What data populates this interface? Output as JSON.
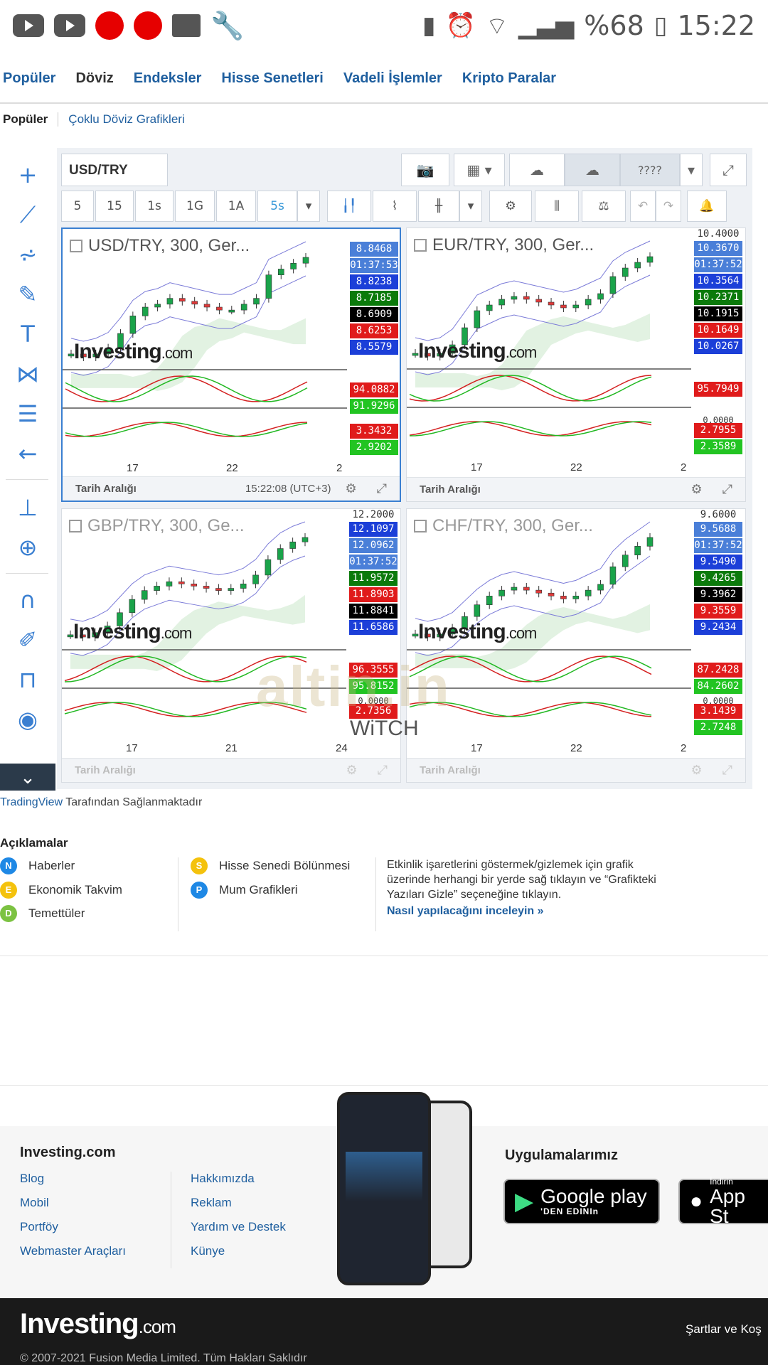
{
  "status_bar": {
    "battery_percent": "%68",
    "time": "15:22"
  },
  "nav": {
    "tabs": [
      "Popüler",
      "Döviz",
      "Endeksler",
      "Hisse Senetleri",
      "Vadeli İşlemler",
      "Kripto Paralar"
    ],
    "active_tab": "Döviz"
  },
  "subnav": {
    "active": "Popüler",
    "link": "Çoklu Döviz Grafikleri"
  },
  "toolbar": {
    "symbol": "USD/TRY",
    "layout_name": "????",
    "intervals": [
      "5",
      "15",
      "1s",
      "1G",
      "1A",
      "5s"
    ],
    "active_interval": "5s"
  },
  "charts": [
    {
      "title": "USD/TRY, 300, Ger...",
      "selected": true,
      "x_ticks": [
        "17",
        "22",
        "2"
      ],
      "price_labels": [
        {
          "text": "8.8468",
          "color": "#4a7fd8"
        },
        {
          "text": "01:37:53",
          "color": "#4a7fd8"
        },
        {
          "text": "8.8238",
          "color": "#1c3fd8"
        },
        {
          "text": "8.7185",
          "color": "#0b7a0b"
        },
        {
          "text": "8.6909",
          "color": "#000000"
        },
        {
          "text": "8.6253",
          "color": "#e01b1b"
        },
        {
          "text": "8.5579",
          "color": "#1c3fd8"
        }
      ],
      "osc1_labels": [
        {
          "text": "94.0882",
          "color": "#e01b1b"
        },
        {
          "text": "91.9296",
          "color": "#22c422"
        }
      ],
      "osc2_labels": [
        {
          "text": "3.3432",
          "color": "#e01b1b"
        },
        {
          "text": "2.9202",
          "color": "#22c422"
        }
      ],
      "footer_label": "Tarih Aralığı",
      "footer_time": "15:22:08 (UTC+3)",
      "trend": [
        8.53,
        8.52,
        8.53,
        8.55,
        8.6,
        8.66,
        8.69,
        8.7,
        8.72,
        8.71,
        8.7,
        8.69,
        8.68,
        8.68,
        8.7,
        8.72,
        8.8,
        8.82,
        8.84,
        8.86
      ]
    },
    {
      "title": "EUR/TRY, 300, Ger...",
      "selected": false,
      "x_ticks": [
        "17",
        "22",
        "2"
      ],
      "price_labels": [
        {
          "text": "10.3670",
          "color": "#4a7fd8"
        },
        {
          "text": "01:37:52",
          "color": "#4a7fd8"
        },
        {
          "text": "10.3564",
          "color": "#1c3fd8"
        },
        {
          "text": "10.2371",
          "color": "#0b7a0b"
        },
        {
          "text": "10.1915",
          "color": "#000000"
        },
        {
          "text": "10.1649",
          "color": "#e01b1b"
        },
        {
          "text": "10.0267",
          "color": "#1c3fd8"
        }
      ],
      "top_tick": "10.4000",
      "osc1_labels": [
        {
          "text": "95.7949",
          "color": "#e01b1b"
        }
      ],
      "osc1_zero": "0.0000",
      "osc2_labels": [
        {
          "text": "2.7955",
          "color": "#e01b1b"
        },
        {
          "text": "2.3589",
          "color": "#22c422"
        }
      ],
      "footer_label": "Tarih Aralığı",
      "footer_time": "",
      "trend": [
        10.03,
        10.02,
        10.03,
        10.06,
        10.12,
        10.18,
        10.2,
        10.22,
        10.23,
        10.22,
        10.21,
        10.2,
        10.19,
        10.2,
        10.22,
        10.24,
        10.3,
        10.33,
        10.35,
        10.37
      ]
    },
    {
      "title": "GBP/TRY, 300, Ge...",
      "selected": false,
      "x_ticks": [
        "17",
        "21",
        "24"
      ],
      "top_tick": "12.2000",
      "price_labels": [
        {
          "text": "12.1097",
          "color": "#1c3fd8"
        },
        {
          "text": "12.0962",
          "color": "#4a7fd8"
        },
        {
          "text": "01:37:52",
          "color": "#4a7fd8"
        },
        {
          "text": "11.9572",
          "color": "#0b7a0b"
        },
        {
          "text": "11.8903",
          "color": "#e01b1b"
        },
        {
          "text": "11.8841",
          "color": "#000000"
        },
        {
          "text": "11.6586",
          "color": "#1c3fd8"
        }
      ],
      "osc1_labels": [
        {
          "text": "96.3555",
          "color": "#e01b1b"
        },
        {
          "text": "95.8152",
          "color": "#22c422"
        }
      ],
      "osc1_zero": "0.0000",
      "osc2_labels": [
        {
          "text": "2.7356",
          "color": "#e01b1b"
        }
      ],
      "footer_label": "Tarih Aralığı",
      "footer_time": "",
      "trend": [
        11.66,
        11.65,
        11.67,
        11.7,
        11.76,
        11.82,
        11.86,
        11.88,
        11.9,
        11.89,
        11.88,
        11.87,
        11.86,
        11.87,
        11.89,
        11.93,
        12.0,
        12.05,
        12.08,
        12.1
      ]
    },
    {
      "title": "CHF/TRY, 300, Ger...",
      "selected": false,
      "x_ticks": [
        "17",
        "22",
        "2"
      ],
      "top_tick": "9.6000",
      "price_labels": [
        {
          "text": "9.5688",
          "color": "#4a7fd8"
        },
        {
          "text": "01:37:52",
          "color": "#4a7fd8"
        },
        {
          "text": "9.5490",
          "color": "#1c3fd8"
        },
        {
          "text": "9.4265",
          "color": "#0b7a0b"
        },
        {
          "text": "9.3962",
          "color": "#000000"
        },
        {
          "text": "9.3559",
          "color": "#e01b1b"
        },
        {
          "text": "9.2434",
          "color": "#1c3fd8"
        }
      ],
      "osc1_labels": [
        {
          "text": "87.2428",
          "color": "#e01b1b"
        },
        {
          "text": "84.2602",
          "color": "#22c422"
        }
      ],
      "osc1_zero": "0.0000",
      "osc2_labels": [
        {
          "text": "3.1439",
          "color": "#e01b1b"
        },
        {
          "text": "2.7248",
          "color": "#22c422"
        }
      ],
      "footer_label": "Tarih Aralığı",
      "footer_time": "",
      "trend": [
        9.24,
        9.23,
        9.24,
        9.26,
        9.3,
        9.34,
        9.37,
        9.39,
        9.4,
        9.39,
        9.38,
        9.37,
        9.36,
        9.37,
        9.39,
        9.41,
        9.47,
        9.51,
        9.54,
        9.57
      ]
    }
  ],
  "watermark": {
    "text": "altin.in",
    "witch": "WiTCH"
  },
  "provided_by": {
    "link": "TradingView",
    "rest": "Tarafından Sağlanmaktadır"
  },
  "legend": {
    "title": "Açıklamalar",
    "items": [
      {
        "letter": "N",
        "label": "Haberler",
        "color": "#1e88e5"
      },
      {
        "letter": "E",
        "label": "Ekonomik Takvim",
        "color": "#f4c20d"
      },
      {
        "letter": "D",
        "label": "Temettüler",
        "color": "#7cc242"
      },
      {
        "letter": "S",
        "label": "Hisse Senedi Bölünmesi",
        "color": "#f4c20d"
      },
      {
        "letter": "P",
        "label": "Mum Grafikleri",
        "color": "#1e88e5"
      }
    ],
    "info": "Etkinlik işaretlerini göstermek/gizlemek için grafik üzerinde herhangi bir yerde sağ tıklayın ve “Grafikteki Yazıları Gizle” seçeneğine tıklayın.",
    "howto": "Nasıl yapılacağını inceleyin »"
  },
  "footer": {
    "brand": "Investing.com",
    "col1": [
      "Blog",
      "Mobil",
      "Portföy",
      "Webmaster Araçları"
    ],
    "col2": [
      "Hakkımızda",
      "Reklam",
      "Yardım ve Destek",
      "Künye"
    ],
    "apps_title": "Uygulamalarımız",
    "google_top": "",
    "google_main": "Google play",
    "google_sub": "'DEN EDINIn",
    "apple_top": "İndirin",
    "apple_main": "App St"
  },
  "dark_footer": {
    "logo_main": "Investing",
    "logo_suffix": ".com",
    "terms": "Şartlar ve Koş",
    "copyright": "© 2007-2021 Fusion Media Limited. Tüm Hakları Saklıdır"
  }
}
